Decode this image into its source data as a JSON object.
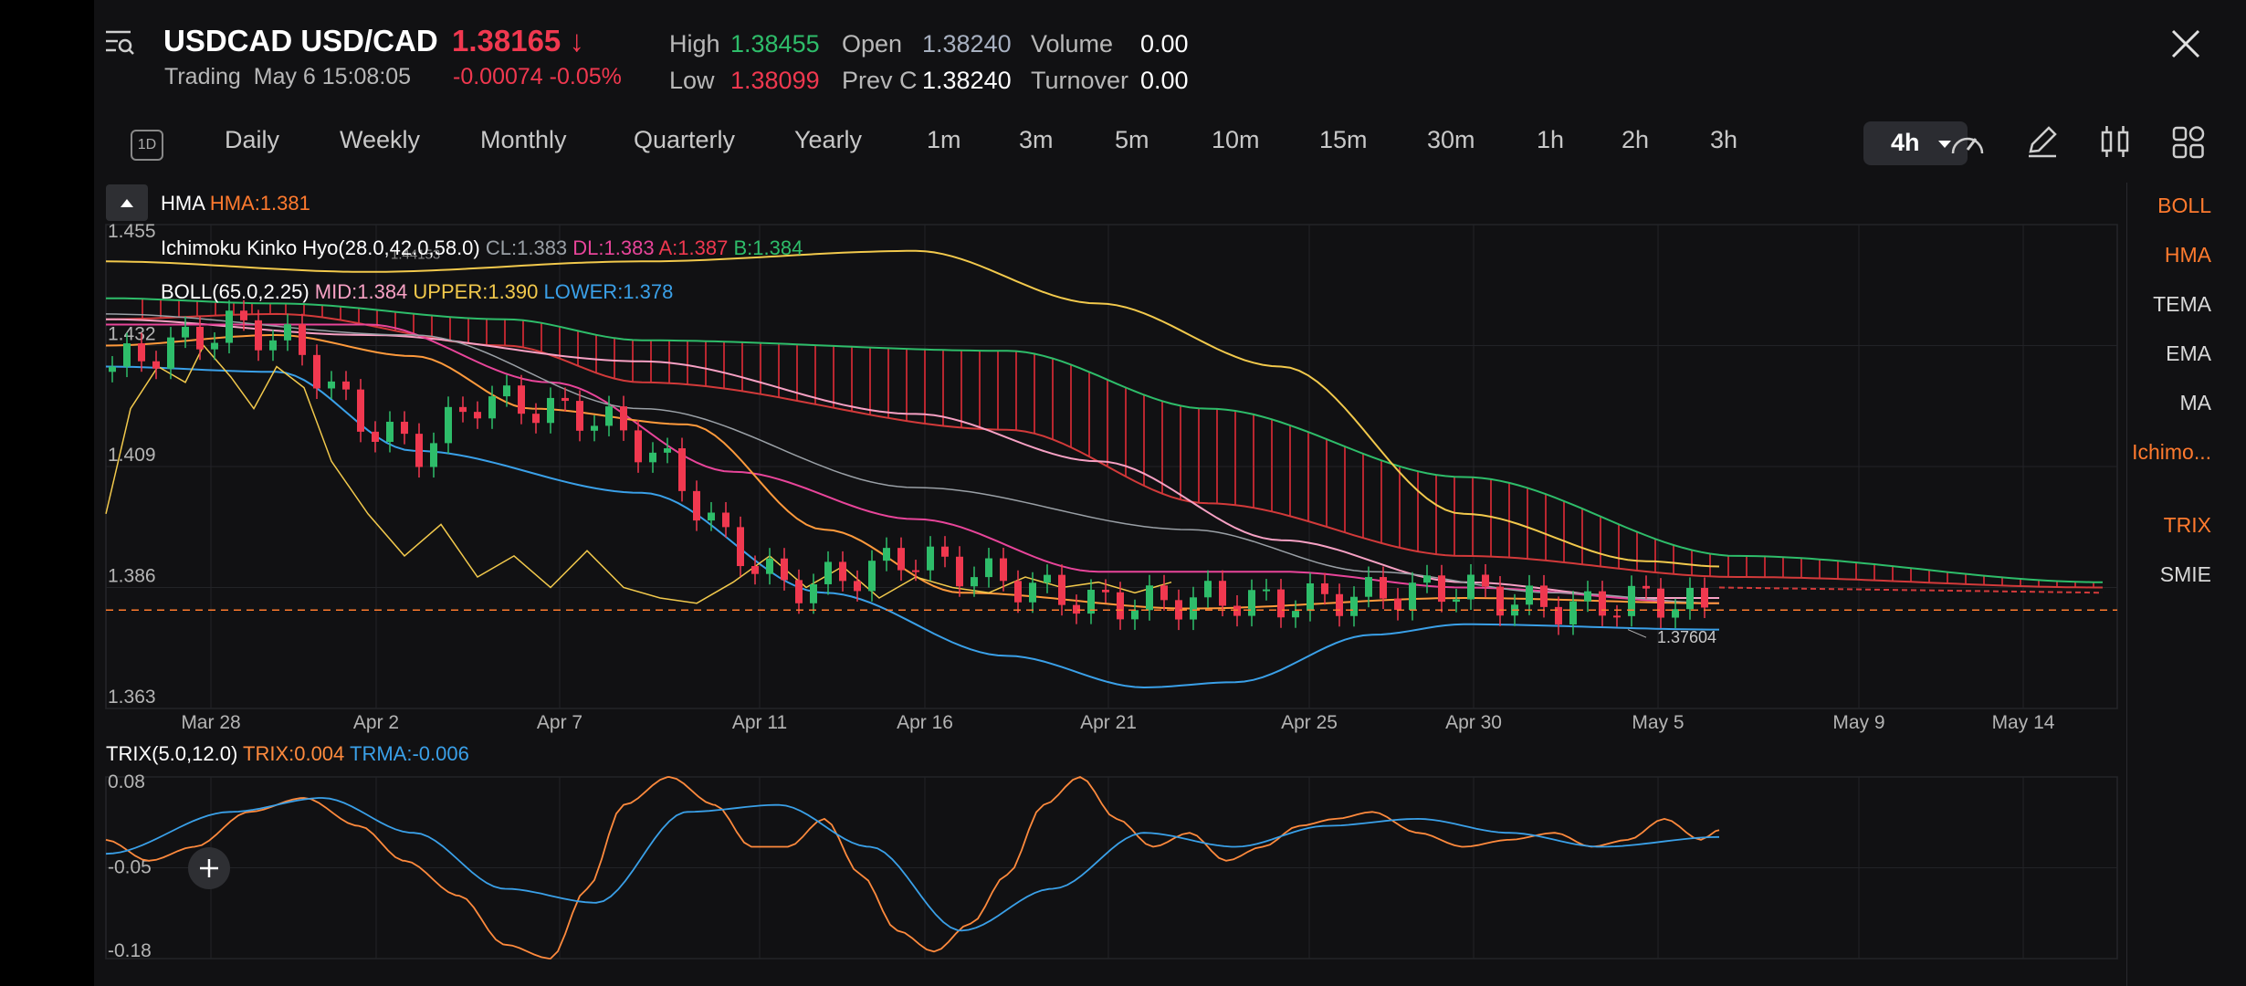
{
  "header": {
    "symbol": "USDCAD USD/CAD",
    "price": "1.38165",
    "price_arrow": "↓",
    "status": "Trading",
    "timestamp": "May 6 15:08:05",
    "change": "-0.00074",
    "change_pct": "-0.05%",
    "stats": {
      "high_label": "High",
      "high": "1.38455",
      "low_label": "Low",
      "low": "1.38099",
      "open_label": "Open",
      "open": "1.38240",
      "prevc_label": "Prev C",
      "prevc": "1.38240",
      "volume_label": "Volume",
      "volume": "0.00",
      "turnover_label": "Turnover",
      "turnover": "0.00"
    },
    "close_icon": "close-icon",
    "menu_icon": "menu-search-icon"
  },
  "timeframes": {
    "mode_badge": "1D",
    "items": [
      "Daily",
      "Weekly",
      "Monthly",
      "Quarterly",
      "Yearly",
      "1m",
      "3m",
      "5m",
      "10m",
      "15m",
      "30m",
      "1h",
      "2h",
      "3h"
    ],
    "active": "4h",
    "tools": [
      "gauge-icon",
      "pencil-icon",
      "candle-icon",
      "grid-icon"
    ]
  },
  "indicators_side": {
    "main": [
      {
        "label": "BOLL",
        "active": true
      },
      {
        "label": "HMA",
        "active": true
      },
      {
        "label": "TEMA",
        "active": false
      },
      {
        "label": "EMA",
        "active": false
      },
      {
        "label": "MA",
        "active": false
      },
      {
        "label": "Ichimo...",
        "active": true
      }
    ],
    "sub": [
      {
        "label": "TRIX",
        "active": true
      },
      {
        "label": "SMIE",
        "active": false
      }
    ]
  },
  "legends": {
    "hma_name": "HMA",
    "hma_val": "HMA:1.381",
    "ichimoku_name": "Ichimoku Kinko Hyo(28.0,42.0,58.0)",
    "ichimoku_cl": "CL:1.383",
    "ichimoku_dl": "DL:1.383",
    "ichimoku_a": "A:1.387",
    "ichimoku_b": "B:1.384",
    "boll_name": "BOLL(65.0,2.25)",
    "boll_mid": "MID:1.384",
    "boll_upper": "UPPER:1.390",
    "boll_lower": "LOWER:1.378",
    "trix_name": "TRIX(5.0,12.0)",
    "trix_val": "TRIX:0.004",
    "trma_val": "TRMA:-0.006"
  },
  "colors": {
    "up": "#2ebd6a",
    "down": "#f0384f",
    "accent": "#ff7a2e",
    "boll_upper": "#f2c94c",
    "boll_lower": "#3aa0e8",
    "boll_mid": "#f7a1c4",
    "ichimoku_dl": "#e8459a",
    "ichimoku_cl": "#9aa0a6",
    "trma": "#3aa0e8"
  },
  "chart_data": [
    {
      "type": "candlestick",
      "title": "USDCAD 4h",
      "ylabels": [
        "1.455",
        "1.432",
        "1.409",
        "1.386",
        "1.363"
      ],
      "ylim": [
        1.363,
        1.455
      ],
      "xlabels": [
        "Mar 28",
        "Apr 2",
        "Apr 7",
        "Apr 11",
        "Apr 16",
        "Apr 21",
        "Apr 25",
        "Apr 30",
        "May 5",
        "May 9",
        "May 14"
      ],
      "current_price_line": 1.3817,
      "low_annotation": "1.37604",
      "high_annotation": "1.44153",
      "series": [
        {
          "name": "close (approx.)",
          "values": [
            1.428,
            1.432,
            1.436,
            1.432,
            1.418,
            1.412,
            1.422,
            1.42,
            1.418,
            1.41,
            1.395,
            1.386,
            1.388,
            1.392,
            1.389,
            1.386,
            1.383,
            1.383,
            1.384,
            1.383,
            1.384,
            1.385,
            1.386,
            1.383,
            1.382,
            1.384,
            1.382
          ]
        }
      ]
    },
    {
      "type": "line",
      "title": "TRIX(5.0,12.0)",
      "ylabels": [
        "0.08",
        "-0.05",
        "-0.18"
      ],
      "ylim": [
        -0.18,
        0.08
      ]
    }
  ]
}
